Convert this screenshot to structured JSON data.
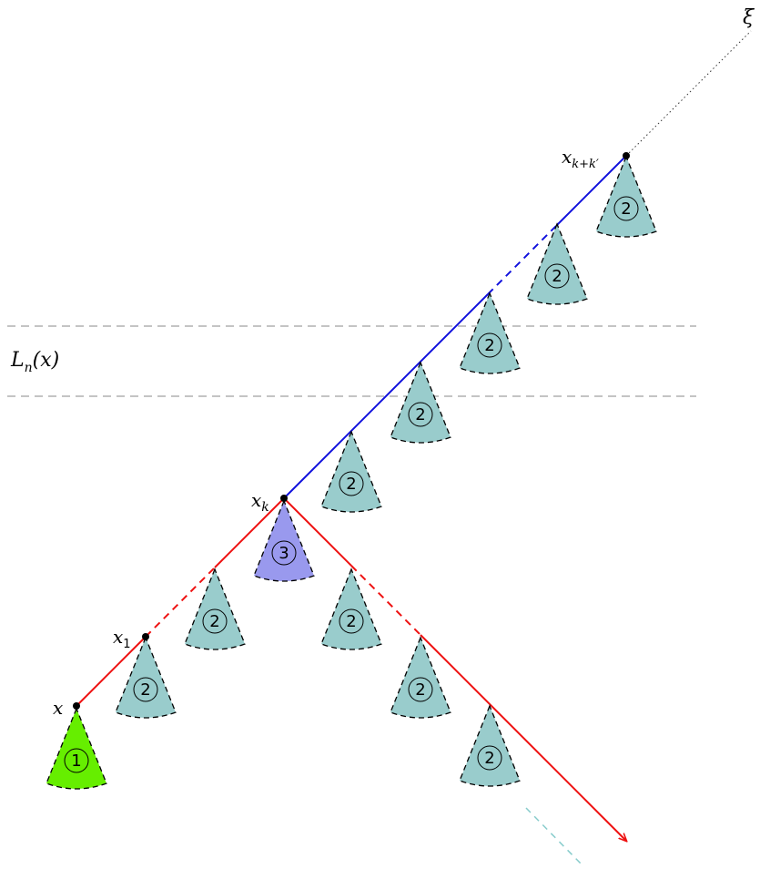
{
  "labels": {
    "x": "x",
    "x1_base": "x",
    "x1_sub": "1",
    "xk_base": "x",
    "xk_sub": "k",
    "xkk_base": "x",
    "xkk_sub": "k+k′",
    "xi": "ξ",
    "band_L": "L",
    "band_sub": "n",
    "band_arg": "(x)"
  },
  "cone_numbers": {
    "one": "1",
    "two": "2",
    "three": "3"
  },
  "colors": {
    "red_path": "#ee1111",
    "blue_path": "#1111dd",
    "cone_1": "#66ee00",
    "cone_2": "#99cccc",
    "cone_3": "#9999ee",
    "band_lines": "#888888",
    "tail_dash": "#88cccc"
  }
}
